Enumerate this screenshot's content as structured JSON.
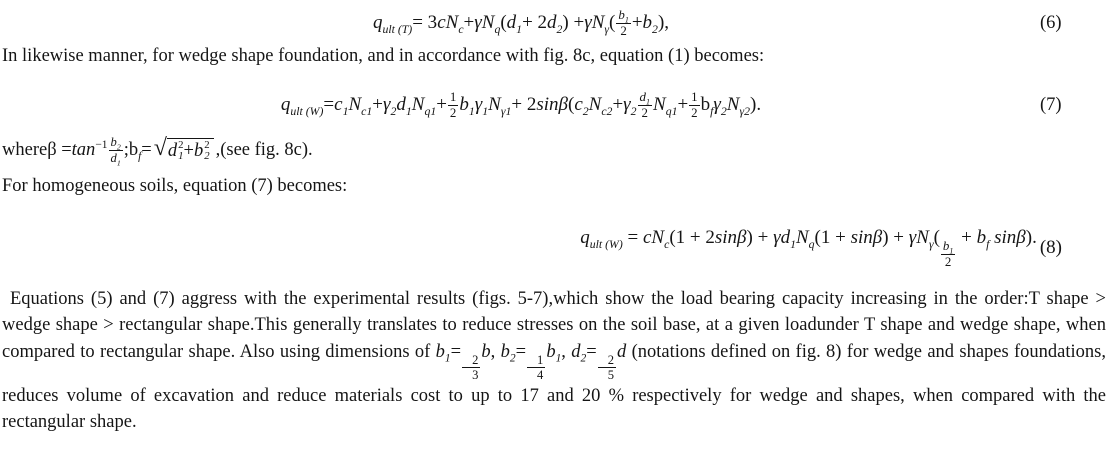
{
  "page": {
    "background": "#ffffff",
    "text_color": "#151515"
  },
  "text": {
    "intro": "In likewise manner, for wedge shape foundation, and in accordance with fig. 8c, equation (1) becomes:",
    "homogeneous": "For homogeneous soils, equation (7) becomes:"
  },
  "equations": {
    "eq6": {
      "number": "(6)",
      "tokens": [
        {
          "t": "sub",
          "b": "q",
          "s": "ult (T)"
        },
        " = 3",
        {
          "t": "i",
          "v": "c"
        },
        {
          "t": "sub",
          "b": "N",
          "s": "c"
        },
        " + ",
        {
          "t": "i",
          "v": "γ"
        },
        {
          "t": "sub",
          "b": "N",
          "s": "q"
        },
        " (",
        {
          "t": "sub",
          "b": "d",
          "s": "1"
        },
        " + 2",
        {
          "t": "sub",
          "b": "d",
          "s": "2"
        },
        ") + ",
        {
          "t": "i",
          "v": "γ"
        },
        {
          "t": "sub",
          "b": "N",
          "s": "γ"
        },
        " (",
        {
          "t": "frac",
          "n": [
            {
              "t": "sub",
              "b": "b",
              "s": "1"
            }
          ],
          "d": [
            "2"
          ]
        },
        " + ",
        {
          "t": "sub",
          "b": "b",
          "s": "2"
        },
        "),"
      ]
    },
    "eq7": {
      "number": "(7)",
      "tokens": [
        {
          "t": "sub",
          "b": "q",
          "s": "ult (W)"
        },
        " = ",
        {
          "t": "sub",
          "b": "c",
          "s": "1"
        },
        {
          "t": "sub",
          "b": "N",
          "s": "c1"
        },
        " + ",
        {
          "t": "sub",
          "b": "γ",
          "s": "2"
        },
        {
          "t": "sub",
          "b": "d",
          "s": "1"
        },
        {
          "t": "sub",
          "b": "N",
          "s": "q1"
        },
        " + ",
        {
          "t": "frac",
          "n": [
            "1"
          ],
          "d": [
            "2"
          ]
        },
        {
          "t": "sub",
          "b": "b",
          "s": "1"
        },
        {
          "t": "sub",
          "b": "γ",
          "s": "1"
        },
        {
          "t": "sub",
          "b": "N",
          "s": "γ1"
        },
        " + 2",
        {
          "t": "i",
          "v": "sinβ"
        },
        "(",
        {
          "t": "sub",
          "b": "c",
          "s": "2"
        },
        {
          "t": "sub",
          "b": "N",
          "s": "c2"
        },
        " + ",
        {
          "t": "sub",
          "b": "γ",
          "s": "2"
        },
        " ",
        {
          "t": "frac",
          "n": [
            {
              "t": "sub",
              "b": "d",
              "s": "1"
            }
          ],
          "d": [
            "2"
          ]
        },
        {
          "t": "sub",
          "b": "N",
          "s": "q1"
        },
        " + ",
        {
          "t": "frac",
          "n": [
            "1"
          ],
          "d": [
            "2"
          ]
        },
        {
          "t": "sub",
          "b": "b",
          "s": "f",
          "bi": false
        },
        {
          "t": "sub",
          "b": "γ",
          "s": "2"
        },
        {
          "t": "sub",
          "b": "N",
          "s": "γ2"
        },
        ")."
      ]
    },
    "where": {
      "tokens": [
        "whereβ = ",
        {
          "t": "sup",
          "b": "tan",
          "s": "−1"
        },
        " ",
        {
          "t": "frac",
          "n": [
            {
              "t": "sub",
              "b": "b",
              "s": "2"
            }
          ],
          "d": [
            {
              "t": "sub",
              "b": "d",
              "s": "1"
            }
          ]
        },
        " ;",
        {
          "t": "sub",
          "b": "b",
          "s": "f",
          "bi": false
        },
        " = ",
        {
          "t": "sqrt",
          "c": [
            {
              "t": "ss",
              "b": "d",
              "sub": "1",
              "sup": "2"
            },
            " + ",
            {
              "t": "ss",
              "b": "b",
              "sub": "2",
              "sup": "2"
            }
          ]
        },
        " ,(see fig. 8c)."
      ]
    },
    "eq8": {
      "number": "(8)",
      "tokens": [
        {
          "t": "sub",
          "b": "q",
          "s": "ult (W)"
        },
        " = ",
        {
          "t": "i",
          "v": "c"
        },
        {
          "t": "sub",
          "b": "N",
          "s": "c"
        },
        "(1 + 2",
        {
          "t": "i",
          "v": "sinβ"
        },
        ") + ",
        {
          "t": "i",
          "v": "γ"
        },
        {
          "t": "sub",
          "b": "d",
          "s": "1"
        },
        {
          "t": "sub",
          "b": "N",
          "s": "q"
        },
        "(1 + ",
        {
          "t": "i",
          "v": "sinβ"
        },
        ") + ",
        {
          "t": "i",
          "v": "γ"
        },
        {
          "t": "sub",
          "b": "N",
          "s": "γ"
        },
        "(",
        {
          "t": "frac",
          "n": [
            {
              "t": "sub",
              "b": "b",
              "s": "1"
            }
          ],
          "d": [
            "2"
          ]
        },
        " + ",
        {
          "t": "sub",
          "b": "b",
          "s": "f"
        },
        " ",
        {
          "t": "i",
          "v": "sinβ"
        },
        ")."
      ]
    }
  },
  "paragraph": {
    "tokens": [
      "Equations (5) and (7) aggress with the experimental results (figs. 5-7),which show the load bearing capacity increasing in the order:T shape > wedge shape > rectangular shape.This generally translates to reduce stresses on the soil base, at a given loadunder T shape and wedge shape, when compared to rectangular shape. Also using dimensions of ",
      {
        "t": "sub",
        "b": "b",
        "s": "1"
      },
      "=",
      {
        "t": "frac",
        "n": [
          "2"
        ],
        "d": [
          "3"
        ]
      },
      {
        "t": "i",
        "v": "b"
      },
      ", ",
      {
        "t": "sub",
        "b": "b",
        "s": "2"
      },
      "=",
      {
        "t": "frac",
        "n": [
          "1"
        ],
        "d": [
          "4"
        ]
      },
      {
        "t": "sub",
        "b": "b",
        "s": "1"
      },
      ", ",
      {
        "t": "sub",
        "b": "d",
        "s": "2"
      },
      "=",
      {
        "t": "frac",
        "n": [
          "2"
        ],
        "d": [
          "5"
        ]
      },
      {
        "t": "i",
        "v": "d"
      },
      " (notations defined on fig. 8) for wedge and shapes foundations, reduces volume of excavation and reduce materials cost to up to 17 and 20 % respectively for wedge and shapes, when compared with the rectangular shape."
    ]
  }
}
